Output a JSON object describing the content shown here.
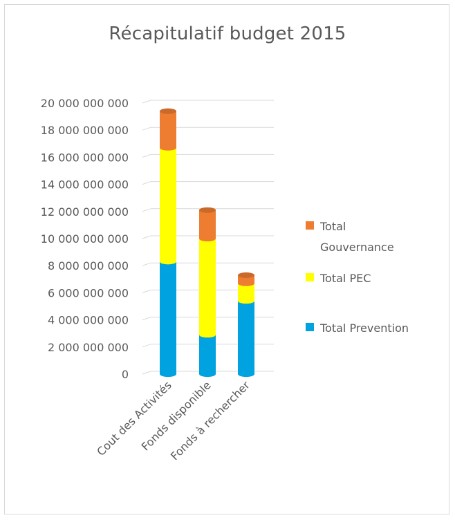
{
  "chart_data": {
    "type": "bar",
    "stacked": true,
    "title": "Récapitulatif budget 2015",
    "xlabel": "",
    "ylabel": "",
    "categories": [
      "Cout des Activités",
      "Fonds disponible",
      "Fonds à rechercher"
    ],
    "series": [
      {
        "name": "Total Prevention",
        "values": [
          8300000000,
          2900000000,
          5400000000
        ],
        "color": "#00a3e0"
      },
      {
        "name": "Total PEC",
        "values": [
          8400000000,
          7100000000,
          1300000000
        ],
        "color": "#ffff00"
      },
      {
        "name": "Total Gouvernance",
        "values": [
          2700000000,
          2100000000,
          600000000
        ],
        "color": "#ee7d31"
      }
    ],
    "ylim": [
      0,
      20000000000
    ],
    "yticks": [
      "0",
      "2 000 000 000",
      "4 000 000 000",
      "6 000 000 000",
      "8 000 000 000",
      "10 000 000 000",
      "12 000 000 000",
      "14 000 000 000",
      "16 000 000 000",
      "18 000 000 000",
      "20 000 000 000"
    ],
    "grid": true,
    "legend_position": "right",
    "legend_order": [
      "Total Gouvernance",
      "Total PEC",
      "Total Prevention"
    ],
    "legend_lines": {
      "Total Gouvernance": [
        "Total",
        "Gouvernance"
      ],
      "Total PEC": [
        "Total PEC"
      ],
      "Total Prevention": [
        "Total Prevention"
      ]
    }
  }
}
